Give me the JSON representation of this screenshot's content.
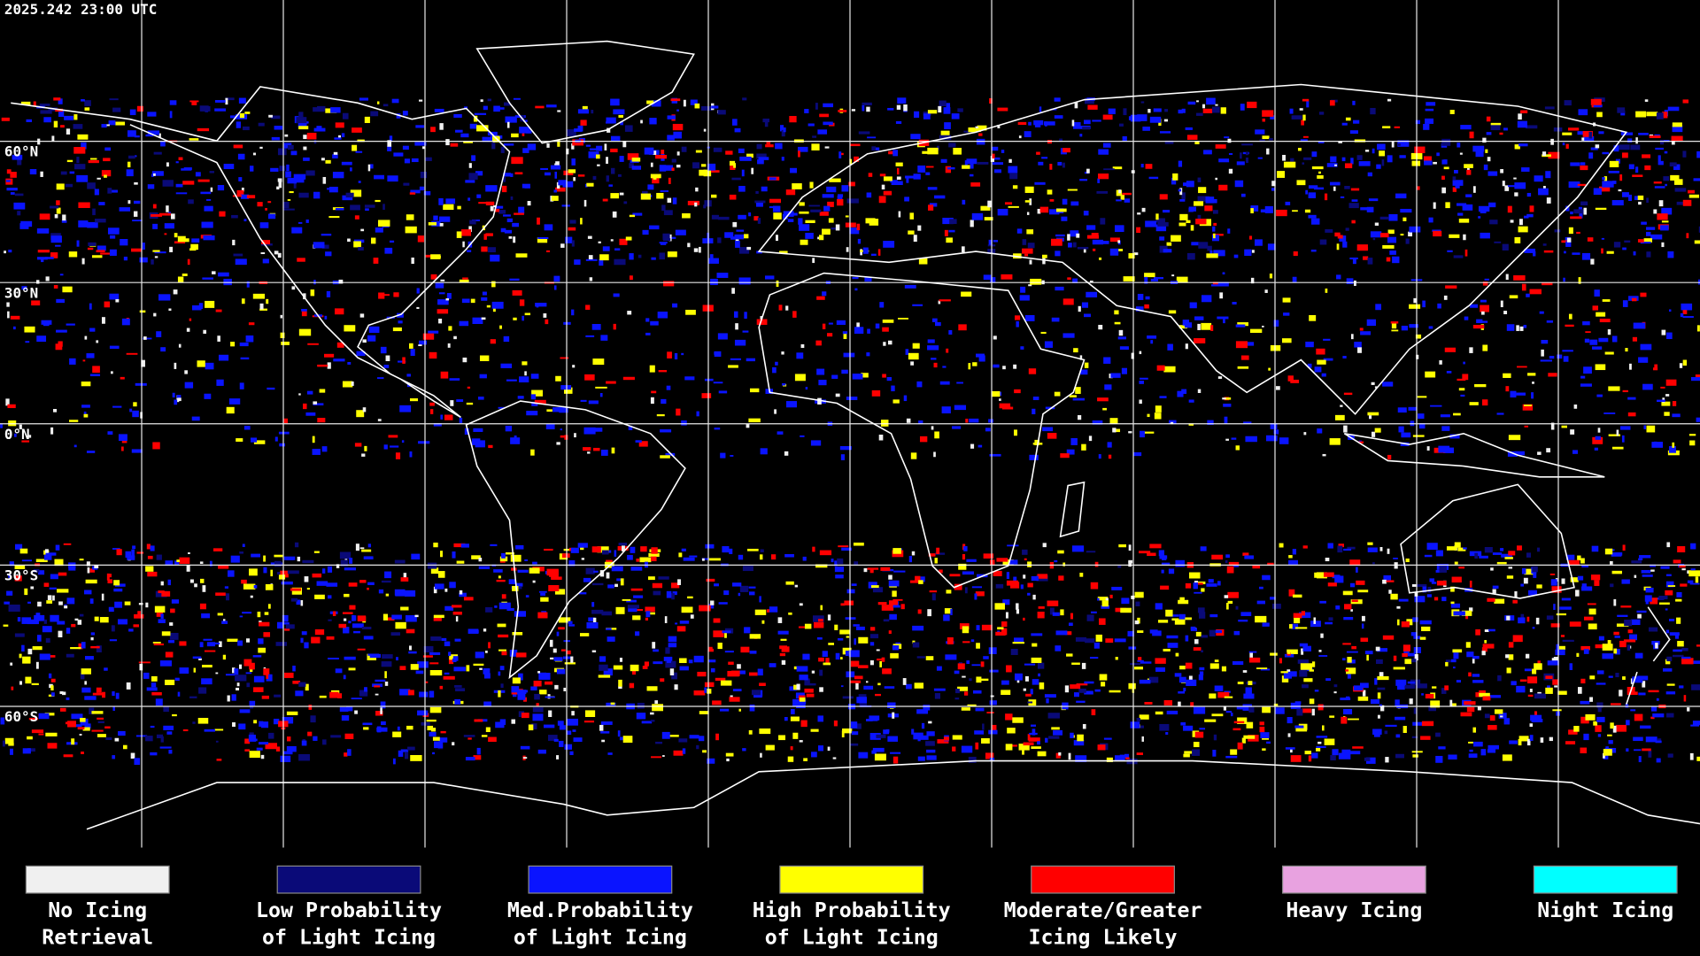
{
  "header": {
    "timestamp": "2025.242 23:00 UTC"
  },
  "map": {
    "lat_labels": [
      "60°N",
      "30°N",
      "0°N",
      "30°S",
      "60°S"
    ]
  },
  "legend": {
    "items": [
      {
        "color": "#f0f0f0",
        "lines": [
          "No Icing",
          "Retrieval"
        ]
      },
      {
        "color": "#0a0a78",
        "lines": [
          "Low Probability",
          "of Light Icing"
        ]
      },
      {
        "color": "#0a14ff",
        "lines": [
          "Med.Probability",
          "of Light Icing"
        ]
      },
      {
        "color": "#ffff00",
        "lines": [
          "High Probability",
          "of Light Icing"
        ]
      },
      {
        "color": "#ff0000",
        "lines": [
          "Moderate/Greater",
          "Icing Likely"
        ]
      },
      {
        "color": "#e8a2e0",
        "lines": [
          "Heavy Icing"
        ]
      },
      {
        "color": "#00ffff",
        "lines": [
          "Night Icing"
        ]
      }
    ]
  }
}
